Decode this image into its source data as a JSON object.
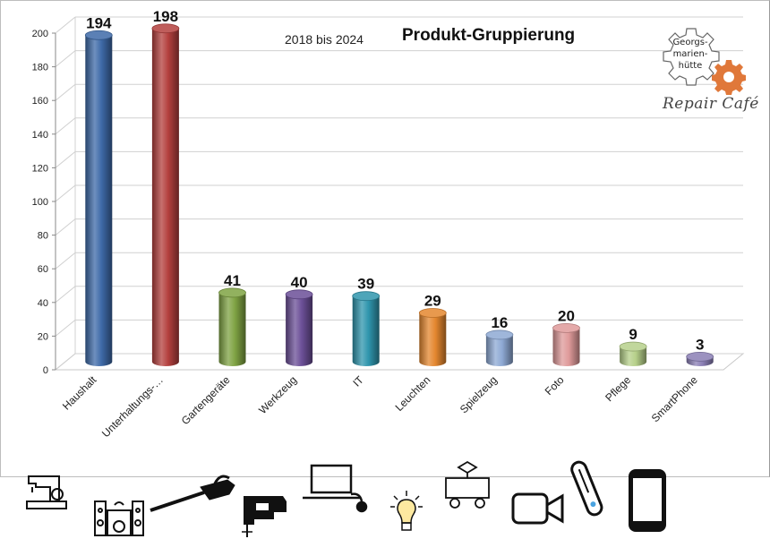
{
  "chart_data": {
    "type": "bar",
    "title": "Produkt-Gruppierung",
    "subtitle": "2018 bis 2024",
    "categories": [
      "Haushalt",
      "Unterhaltungs-…",
      "Gartengeräte",
      "Werkzeug",
      "IT",
      "Leuchten",
      "Spielzeug",
      "Foto",
      "Pflege",
      "SmartPhone"
    ],
    "values": [
      194,
      198,
      41,
      40,
      39,
      29,
      16,
      20,
      9,
      3
    ],
    "colors": [
      "#3e6aa8",
      "#b4403e",
      "#7fa343",
      "#6b4f97",
      "#2f95ad",
      "#e4872f",
      "#8ea9d4",
      "#df9a9a",
      "#b6d08a",
      "#8b7fb5"
    ],
    "ylim": [
      0,
      200
    ],
    "yticks": [
      0,
      20,
      40,
      60,
      80,
      100,
      120,
      140,
      160,
      180,
      200
    ],
    "grid": true,
    "style": "3d-cylinder"
  },
  "logo": {
    "line1": "Georgs-",
    "line2": "marien-",
    "line3": "hütte",
    "caption": "Repair Café",
    "accent": "#e0783a"
  },
  "icons": [
    "sewing-machine-icon",
    "stereo-icon",
    "hedge-trimmer-icon",
    "jigsaw-icon",
    "laptop-icon",
    "light-bulb-icon",
    "toy-wagon-icon",
    "video-camera-icon",
    "electric-toothbrush-icon",
    "smartphone-icon"
  ]
}
